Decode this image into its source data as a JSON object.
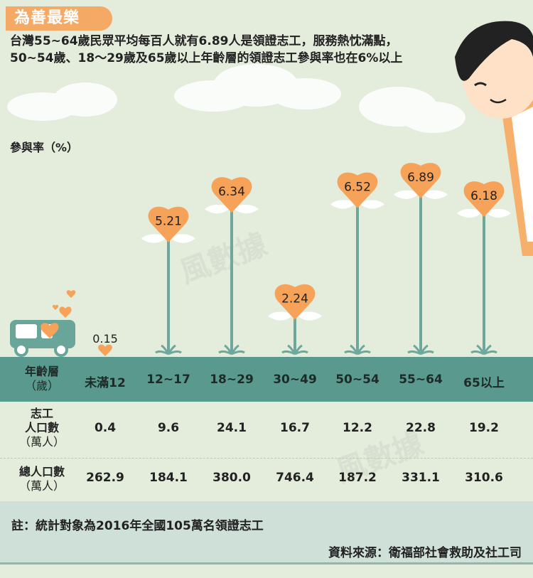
{
  "header": {
    "badge": "為善最樂",
    "subtitle": "台灣55~64歲民眾平均每百人就有6.89人是領證志工，服務熱忱滿點，50~54歲、18～29歲及65歲以上年齡層的領證志工參與率也在6%以上"
  },
  "table": {
    "age_label": "年齡層",
    "age_unit": "（歲）",
    "vol_label": "志工",
    "vol_label2": "人口數",
    "vol_unit": "（萬人）",
    "pop_label": "總人口數",
    "pop_unit": "（萬人）",
    "volunteers": [
      "0.4",
      "9.6",
      "24.1",
      "16.7",
      "12.2",
      "22.8",
      "19.2"
    ],
    "population": [
      "262.9",
      "184.1",
      "380.0",
      "746.4",
      "187.2",
      "331.1",
      "310.6"
    ]
  },
  "footer": {
    "note": "註：統計對象為2016年全國105萬名領證志工",
    "source": "資料來源：衛福部社會救助及社工司"
  },
  "colors": {
    "heart": "#f6a259",
    "stem": "#6ea89c",
    "band": "#5a9a8e",
    "background": "#e4ecdc"
  },
  "chart_data": {
    "type": "bar",
    "ylabel": "參與率（%）",
    "categories": [
      "未滿12",
      "12~17",
      "18~29",
      "30~49",
      "50~54",
      "55~64",
      "65以上"
    ],
    "values": [
      0.15,
      5.21,
      6.34,
      2.24,
      6.52,
      6.89,
      6.18
    ],
    "labels": [
      "0.15",
      "5.21",
      "6.34",
      "2.24",
      "6.52",
      "6.89",
      "6.18"
    ],
    "ylim": [
      0,
      7
    ]
  }
}
